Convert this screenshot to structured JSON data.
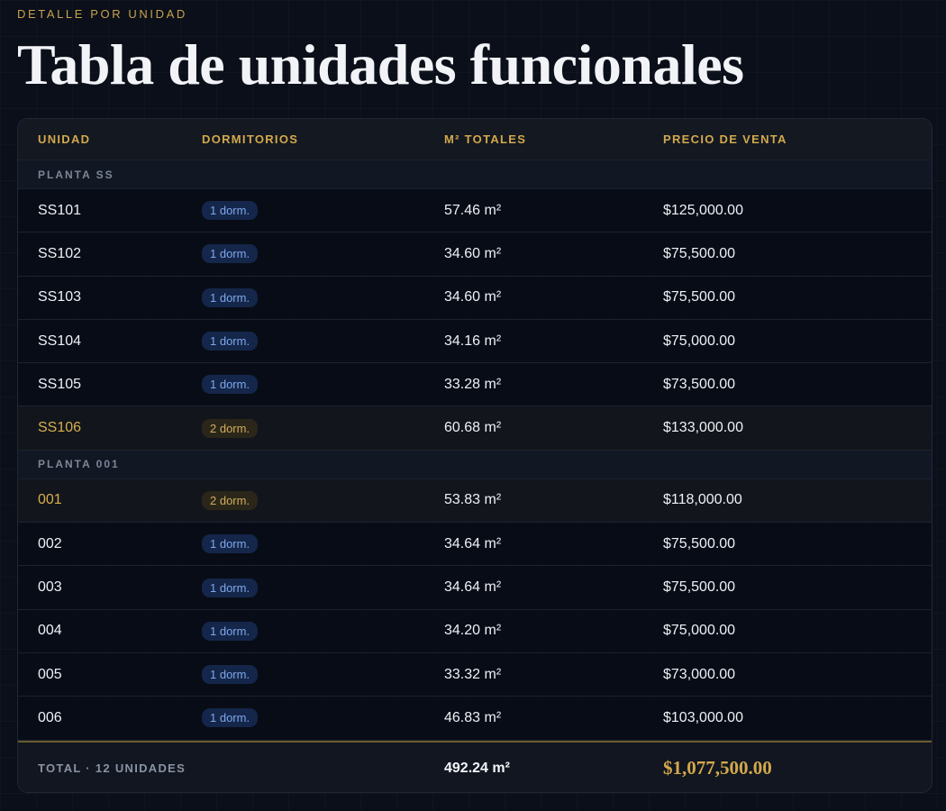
{
  "header": {
    "eyebrow": "DETALLE POR UNIDAD",
    "title": "Tabla de unidades funcionales"
  },
  "table": {
    "columns": [
      "UNIDAD",
      "DORMITORIOS",
      "M² TOTALES",
      "PRECIO DE VENTA"
    ],
    "groups": [
      {
        "label": "PLANTA SS",
        "rows": [
          {
            "unit": "SS101",
            "dorms": "1 dorm.",
            "area": "57.46 m²",
            "price": "$125,000.00",
            "highlight": false
          },
          {
            "unit": "SS102",
            "dorms": "1 dorm.",
            "area": "34.60 m²",
            "price": "$75,500.00",
            "highlight": false
          },
          {
            "unit": "SS103",
            "dorms": "1 dorm.",
            "area": "34.60 m²",
            "price": "$75,500.00",
            "highlight": false
          },
          {
            "unit": "SS104",
            "dorms": "1 dorm.",
            "area": "34.16 m²",
            "price": "$75,000.00",
            "highlight": false
          },
          {
            "unit": "SS105",
            "dorms": "1 dorm.",
            "area": "33.28 m²",
            "price": "$73,500.00",
            "highlight": false
          },
          {
            "unit": "SS106",
            "dorms": "2 dorm.",
            "area": "60.68 m²",
            "price": "$133,000.00",
            "highlight": true
          }
        ]
      },
      {
        "label": "PLANTA 001",
        "rows": [
          {
            "unit": "001",
            "dorms": "2 dorm.",
            "area": "53.83 m²",
            "price": "$118,000.00",
            "highlight": true
          },
          {
            "unit": "002",
            "dorms": "1 dorm.",
            "area": "34.64 m²",
            "price": "$75,500.00",
            "highlight": false
          },
          {
            "unit": "003",
            "dorms": "1 dorm.",
            "area": "34.64 m²",
            "price": "$75,500.00",
            "highlight": false
          },
          {
            "unit": "004",
            "dorms": "1 dorm.",
            "area": "34.20 m²",
            "price": "$75,000.00",
            "highlight": false
          },
          {
            "unit": "005",
            "dorms": "1 dorm.",
            "area": "33.32 m²",
            "price": "$73,000.00",
            "highlight": false
          },
          {
            "unit": "006",
            "dorms": "1 dorm.",
            "area": "46.83 m²",
            "price": "$103,000.00",
            "highlight": false
          }
        ]
      }
    ],
    "total": {
      "label": "TOTAL · 12 UNIDADES",
      "area": "492.24 m²",
      "price": "$1,077,500.00"
    }
  }
}
